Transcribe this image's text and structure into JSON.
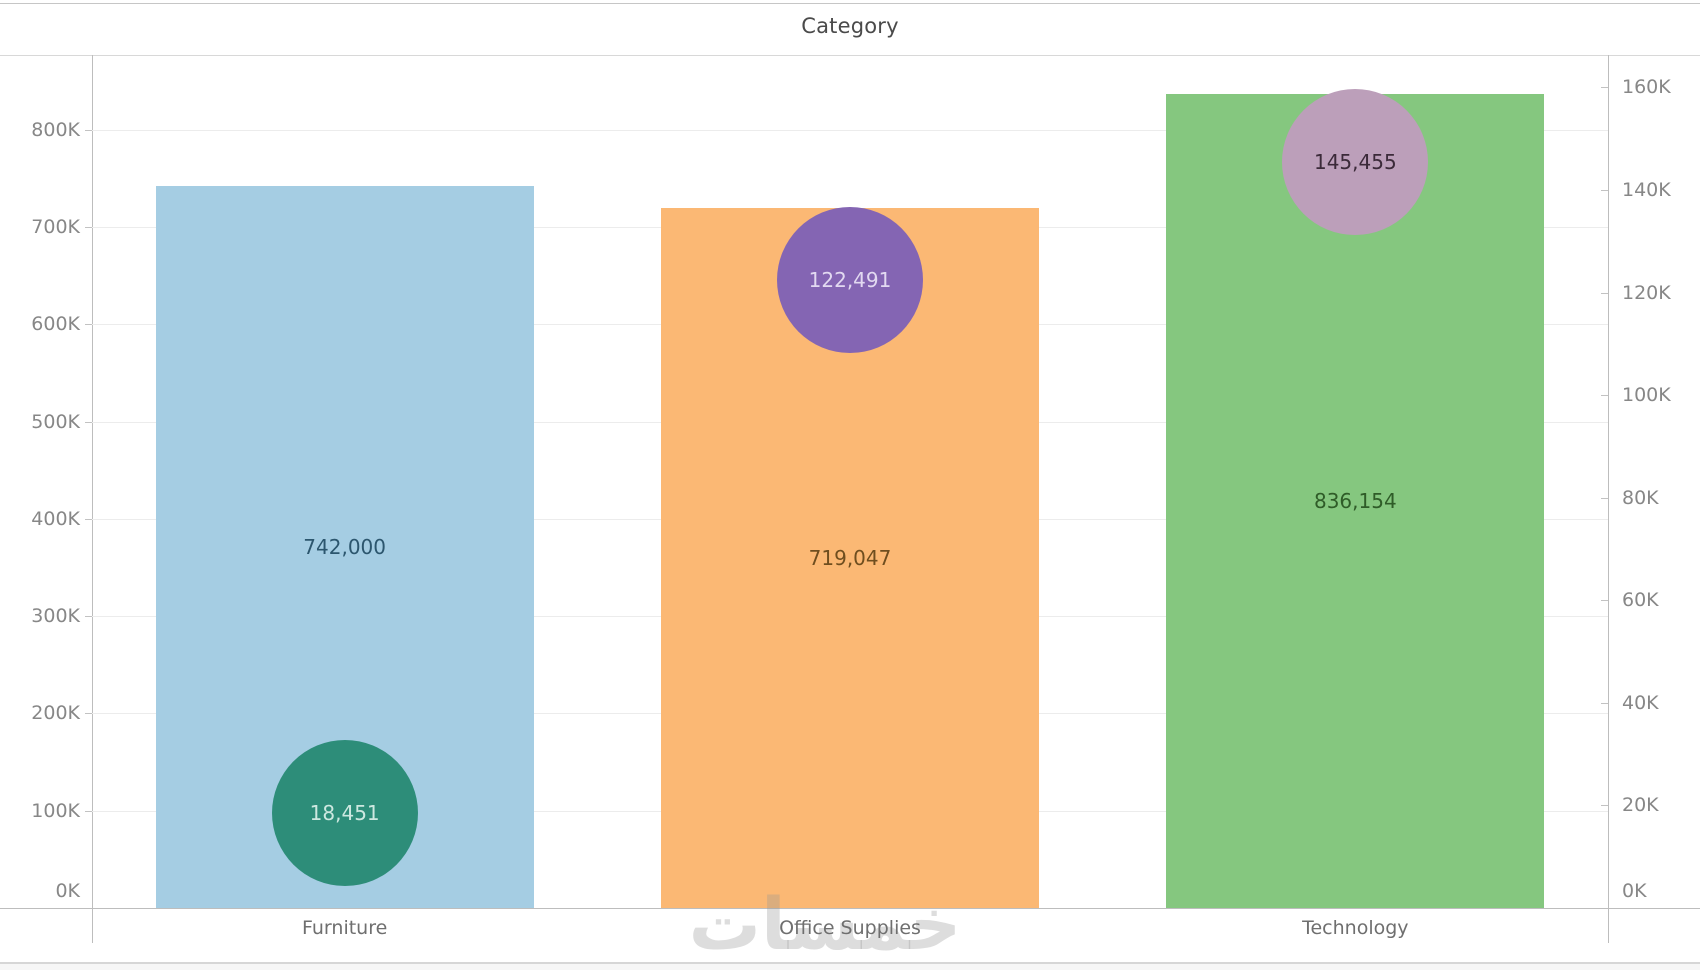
{
  "title_band": {
    "title": "Category"
  },
  "watermark": "خمسات",
  "chart_data": {
    "type": "bar",
    "subtype": "dual-axis combo: bars (left axis) with overlaid circles (right axis), Tableau style",
    "title": "Category",
    "categories": [
      "Furniture",
      "Office Supplies",
      "Technology"
    ],
    "series": [
      {
        "name": "bars-left-axis",
        "mark": "bar",
        "values": [
          742000,
          719047,
          836154
        ],
        "value_labels": [
          "742,000",
          "719,047",
          "836,154"
        ],
        "colors": [
          "#a5cde3",
          "#fbb874",
          "#85c77f"
        ],
        "label_colors": [
          "#2c566e",
          "#6f4e1f",
          "#2f5c28"
        ]
      },
      {
        "name": "circles-right-axis",
        "mark": "circle",
        "values": [
          18451,
          122491,
          145455
        ],
        "value_labels": [
          "18,451",
          "122,491",
          "145,455"
        ],
        "colors": [
          "#2d8d79",
          "#8465b3",
          "#bc9fba"
        ],
        "label_colors": [
          "#cde8e0",
          "#e2d9f1",
          "#3b2a39"
        ]
      }
    ],
    "left_axis": {
      "ticks": [
        "0K",
        "100K",
        "200K",
        "300K",
        "400K",
        "500K",
        "600K",
        "700K",
        "800K"
      ],
      "tick_values": [
        0,
        100000,
        200000,
        300000,
        400000,
        500000,
        600000,
        700000,
        800000
      ],
      "ylim": [
        0,
        876000
      ]
    },
    "right_axis": {
      "ticks": [
        "0K",
        "20K",
        "40K",
        "60K",
        "80K",
        "100K",
        "120K",
        "140K",
        "160K"
      ],
      "tick_values": [
        0,
        20000,
        40000,
        60000,
        80000,
        100000,
        120000,
        140000,
        160000
      ],
      "ylim": [
        0,
        166000
      ]
    },
    "grid": "horizontal light gridlines at left-axis 100K intervals",
    "legend": "none"
  }
}
